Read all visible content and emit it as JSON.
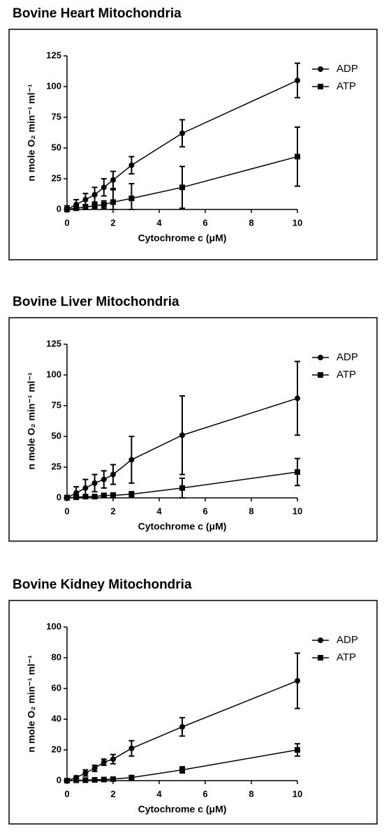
{
  "chart_data": [
    {
      "type": "line",
      "title": "Bovine Heart Mitochondria",
      "xlabel": "Cytochrome c (μM)",
      "ylabel": "n mole O₂ min⁻¹ ml⁻¹",
      "x": [
        0,
        0.4,
        0.8,
        1.2,
        1.6,
        2,
        2.8,
        5,
        10
      ],
      "series": [
        {
          "name": "ADP",
          "color": "#000000",
          "marker": "circle",
          "values": [
            0,
            4,
            8,
            12,
            18,
            24,
            36,
            62,
            105
          ],
          "errors": [
            3,
            4,
            5,
            6,
            7,
            7,
            7,
            11,
            14
          ]
        },
        {
          "name": "ATP",
          "color": "#000000",
          "marker": "square",
          "values": [
            0,
            1,
            2,
            3,
            4,
            6,
            9,
            18,
            43
          ],
          "errors": [
            1,
            1,
            2,
            2,
            3,
            10,
            12,
            17,
            24
          ]
        }
      ],
      "xlim": [
        0,
        10
      ],
      "ylim": [
        0,
        125
      ],
      "xticks": [
        0,
        2,
        4,
        6,
        8,
        10
      ],
      "yticks": [
        0,
        25,
        50,
        75,
        100,
        125
      ],
      "legend": "upper right"
    },
    {
      "type": "line",
      "title": "Bovine Liver Mitochondria",
      "xlabel": "Cytochrome c (μM)",
      "ylabel": "n mole O₂ min⁻¹ ml⁻¹",
      "x": [
        0,
        0.4,
        0.8,
        1.2,
        1.6,
        2,
        2.8,
        5,
        10
      ],
      "series": [
        {
          "name": "ADP",
          "color": "#000000",
          "marker": "circle",
          "values": [
            0,
            4,
            8,
            12,
            15,
            19,
            31,
            51,
            81
          ],
          "errors": [
            2,
            5,
            7,
            7,
            7,
            8,
            19,
            32,
            30
          ]
        },
        {
          "name": "ATP",
          "color": "#000000",
          "marker": "square",
          "values": [
            0,
            0.5,
            1,
            1,
            2,
            2,
            3,
            8,
            21
          ],
          "errors": [
            1,
            1,
            1,
            1,
            1,
            2,
            2,
            8,
            11
          ]
        }
      ],
      "xlim": [
        0,
        10
      ],
      "ylim": [
        0,
        125
      ],
      "xticks": [
        0,
        2,
        4,
        6,
        8,
        10
      ],
      "yticks": [
        0,
        25,
        50,
        75,
        100,
        125
      ],
      "legend": "upper right"
    },
    {
      "type": "line",
      "title": "Bovine Kidney Mitochondria",
      "xlabel": "Cytochrome c (μM)",
      "ylabel": "n mole O₂ min⁻¹ ml⁻¹",
      "x": [
        0,
        0.4,
        0.8,
        1.2,
        1.6,
        2,
        2.8,
        5,
        10
      ],
      "series": [
        {
          "name": "ADP",
          "color": "#000000",
          "marker": "circle",
          "values": [
            0,
            2,
            5,
            8,
            12,
            14,
            21,
            35,
            65
          ],
          "errors": [
            1,
            1,
            2,
            2,
            2,
            3,
            5,
            6,
            18
          ]
        },
        {
          "name": "ATP",
          "color": "#000000",
          "marker": "square",
          "values": [
            0,
            0.2,
            0.3,
            0.5,
            0.7,
            1,
            2,
            7,
            20
          ],
          "errors": [
            0.5,
            0.5,
            0.5,
            0.5,
            0.5,
            1,
            1,
            2,
            4
          ]
        }
      ],
      "xlim": [
        0,
        10
      ],
      "ylim": [
        0,
        100
      ],
      "xticks": [
        0,
        2,
        4,
        6,
        8,
        10
      ],
      "yticks": [
        0,
        20,
        40,
        60,
        80,
        100
      ],
      "legend": "upper right"
    }
  ]
}
